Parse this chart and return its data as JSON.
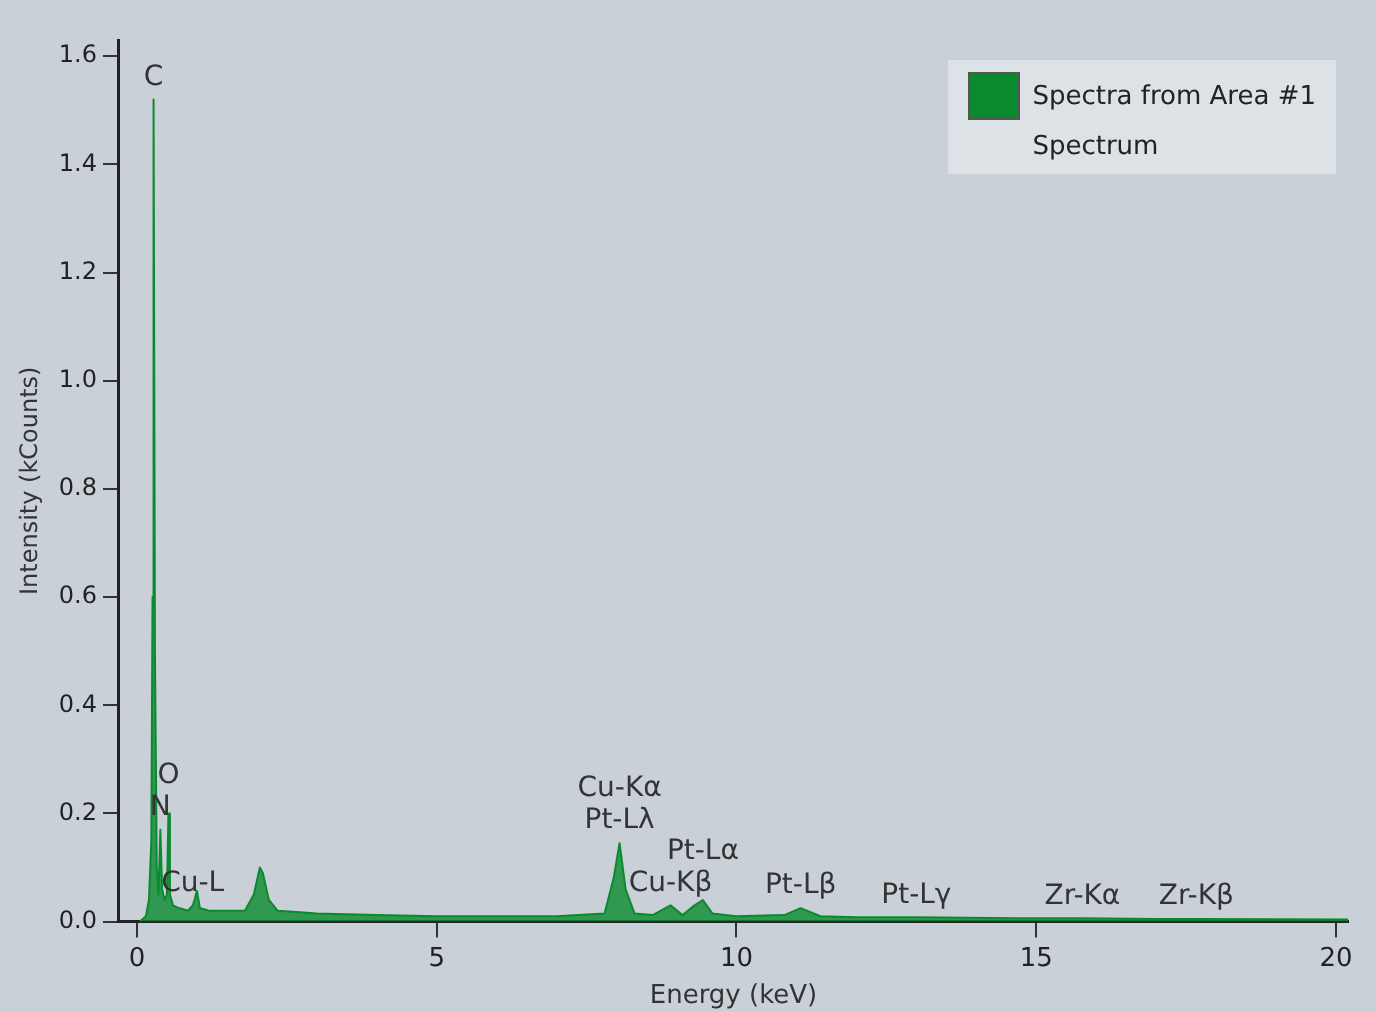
{
  "chart_data": {
    "type": "area",
    "xlabel": "Energy (keV)",
    "ylabel": "Intensity (kCounts)",
    "legend_title": "Spectrum",
    "legend": "top right",
    "grid": false,
    "marker": "none",
    "xlim": [
      -0.3,
      20.2
    ],
    "ylim": [
      0,
      1.63
    ],
    "xticks": [
      0,
      5,
      10,
      15,
      20
    ],
    "yticks": [
      {
        "value": 0,
        "label": "0.0"
      },
      {
        "value": 0.2,
        "label": "0.2"
      },
      {
        "value": 0.4,
        "label": "0.4"
      },
      {
        "value": 0.6,
        "label": "0.6"
      },
      {
        "value": 0.8,
        "label": "0.8"
      },
      {
        "value": 1,
        "label": "1.0"
      },
      {
        "value": 1.2,
        "label": "1.2"
      },
      {
        "value": 1.4,
        "label": "1.4"
      },
      {
        "value": 1.6,
        "label": "1.6"
      }
    ],
    "series": [
      {
        "name": "Spectra from Area #1",
        "color": "#0a8a2e",
        "x": [
          0.05,
          0.15,
          0.2,
          0.24,
          0.26,
          0.277,
          0.3,
          0.33,
          0.36,
          0.39,
          0.42,
          0.46,
          0.5,
          0.525,
          0.55,
          0.6,
          0.7,
          0.85,
          0.93,
          0.96,
          1.0,
          1.05,
          1.2,
          1.5,
          1.8,
          1.95,
          2.05,
          2.1,
          2.2,
          2.35,
          2.6,
          3.0,
          4.0,
          5.0,
          6.0,
          7.0,
          7.8,
          7.95,
          8.05,
          8.15,
          8.3,
          8.6,
          8.9,
          9.1,
          9.3,
          9.44,
          9.6,
          10.0,
          10.8,
          11.07,
          11.4,
          12.0,
          13.0,
          15.0,
          15.77,
          17.0,
          17.67,
          20.2
        ],
        "values": [
          0.0,
          0.01,
          0.04,
          0.15,
          0.6,
          1.52,
          0.5,
          0.1,
          0.05,
          0.17,
          0.06,
          0.04,
          0.05,
          0.2,
          0.05,
          0.03,
          0.025,
          0.02,
          0.03,
          0.04,
          0.057,
          0.025,
          0.02,
          0.02,
          0.02,
          0.05,
          0.1,
          0.09,
          0.04,
          0.02,
          0.018,
          0.015,
          0.012,
          0.01,
          0.01,
          0.01,
          0.015,
          0.08,
          0.145,
          0.06,
          0.015,
          0.012,
          0.03,
          0.012,
          0.03,
          0.04,
          0.015,
          0.01,
          0.012,
          0.025,
          0.01,
          0.008,
          0.008,
          0.006,
          0.006,
          0.005,
          0.005,
          0.004
        ]
      }
    ],
    "annotations": [
      {
        "text": "C",
        "x": 0.277,
        "y": 1.52
      },
      {
        "text": "Cu-L",
        "x": 0.93,
        "y": 0.03
      },
      {
        "text": "O",
        "x": 0.525,
        "y": 0.2
      },
      {
        "text": "N",
        "x": 0.39,
        "y": 0.17
      },
      {
        "text": "Pt-Lλ",
        "x": 8.05,
        "y": 0.145
      },
      {
        "text": "Pt-Lα",
        "x": 9.44,
        "y": 0.04
      },
      {
        "text": "Cu-Kα",
        "x": 8.05,
        "y": 0.145
      },
      {
        "text": "Cu-Kβ",
        "x": 8.9,
        "y": 0.03
      },
      {
        "text": "Pt-Lβ",
        "x": 11.07,
        "y": 0.025
      },
      {
        "text": "Pt-Lγ",
        "x": 13.0,
        "y": 0.008
      },
      {
        "text": "Zr-Kα",
        "x": 15.77,
        "y": 0.006
      },
      {
        "text": "Zr-Kβ",
        "x": 17.67,
        "y": 0.005
      }
    ]
  }
}
